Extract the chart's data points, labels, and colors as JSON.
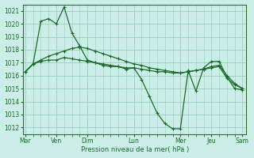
{
  "background_color": "#cceee8",
  "grid_color": "#99ccbb",
  "line_color": "#1a6b2a",
  "spine_color": "#336633",
  "title": "Pression niveau de la mer( hPa )",
  "ylim": [
    1011.5,
    1021.5
  ],
  "yticks": [
    1012,
    1013,
    1014,
    1015,
    1016,
    1017,
    1018,
    1019,
    1020,
    1021
  ],
  "day_labels": [
    "Mar",
    "Ven",
    "Dim",
    "Lun",
    "Mer",
    "Jeu",
    "Sam"
  ],
  "day_x": [
    0,
    4,
    8,
    14,
    20,
    24,
    28
  ],
  "xlim": [
    -0.3,
    28.5
  ],
  "series1": [
    1016.3,
    1016.9,
    1020.2,
    1020.4,
    1020.0,
    1021.3,
    1019.3,
    1018.3,
    1017.2,
    1017.0,
    1016.8,
    1016.7,
    1016.7,
    1016.5,
    1016.6,
    1015.7,
    1014.4,
    1013.1,
    1012.3,
    1011.9,
    1011.9,
    1016.4,
    1014.8,
    1016.6,
    1017.1,
    1017.1,
    1015.9,
    1015.0,
    1014.9
  ],
  "series2": [
    1016.3,
    1016.9,
    1017.1,
    1017.2,
    1017.2,
    1017.4,
    1017.3,
    1017.2,
    1017.1,
    1017.0,
    1016.9,
    1016.8,
    1016.7,
    1016.6,
    1016.6,
    1016.5,
    1016.4,
    1016.3,
    1016.3,
    1016.2,
    1016.2,
    1016.3,
    1016.4,
    1016.5,
    1016.6,
    1016.7,
    1015.8,
    1015.3,
    1015.0
  ],
  "series3": [
    1016.3,
    1016.9,
    1017.2,
    1017.5,
    1017.7,
    1017.9,
    1018.1,
    1018.2,
    1018.1,
    1017.9,
    1017.7,
    1017.5,
    1017.3,
    1017.1,
    1016.9,
    1016.8,
    1016.6,
    1016.5,
    1016.4,
    1016.3,
    1016.2,
    1016.3,
    1016.4,
    1016.5,
    1016.7,
    1016.8,
    1016.0,
    1015.4,
    1015.0
  ],
  "x_values": [
    0,
    1,
    2,
    3,
    4,
    5,
    6,
    7,
    8,
    9,
    10,
    11,
    12,
    13,
    14,
    15,
    16,
    17,
    18,
    19,
    20,
    21,
    22,
    23,
    24,
    25,
    26,
    27,
    28
  ]
}
